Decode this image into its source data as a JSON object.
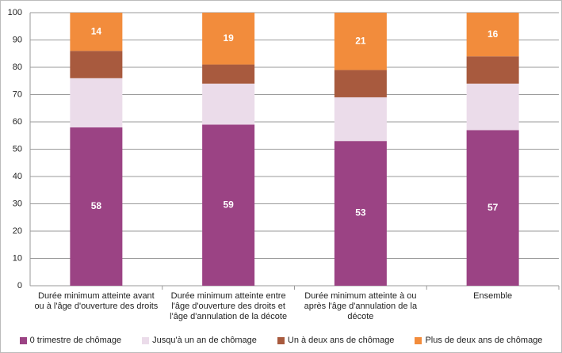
{
  "chart_data": {
    "type": "stacked_bar",
    "categories": [
      "Durée minimum atteinte avant ou à l'âge d'ouverture des droits",
      "Durée minimum atteinte entre l'âge d'ouverture des droits et l'âge d'annulation de la décote",
      "Durée minimum atteinte à ou après l'âge d'annulation de la décote",
      "Ensemble"
    ],
    "series": [
      {
        "name": "0 trimestre de chômage",
        "color": "#9b4384",
        "values": [
          58,
          59,
          53,
          57
        ],
        "show_labels": true
      },
      {
        "name": "Jusqu'à un an de chômage",
        "color": "#ebdcea",
        "values": [
          18,
          15,
          16,
          17
        ],
        "show_labels": false
      },
      {
        "name": "Un à deux ans de chômage",
        "color": "#a85a3e",
        "values": [
          10,
          7,
          10,
          10
        ],
        "show_labels": false
      },
      {
        "name": "Plus de deux ans de chômage",
        "color": "#f28c3c",
        "values": [
          14,
          19,
          21,
          16
        ],
        "show_labels": true
      }
    ],
    "ylim": [
      0,
      100
    ],
    "yticks": [
      0,
      10,
      20,
      30,
      40,
      50,
      60,
      70,
      80,
      90,
      100
    ],
    "grid": true,
    "legend": "bottom"
  }
}
